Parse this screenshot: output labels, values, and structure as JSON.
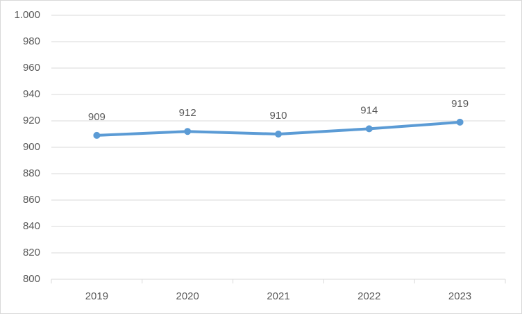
{
  "chart_data": {
    "type": "line",
    "categories": [
      "2019",
      "2020",
      "2021",
      "2022",
      "2023"
    ],
    "values": [
      909,
      912,
      910,
      914,
      919
    ],
    "color": "#5b9bd5",
    "ylim": [
      800,
      1000
    ],
    "yticks": [
      800,
      820,
      840,
      860,
      880,
      900,
      920,
      940,
      960,
      980,
      {
        "value": 1000,
        "label": "1.000"
      }
    ],
    "grid": true,
    "data_labels": true
  }
}
